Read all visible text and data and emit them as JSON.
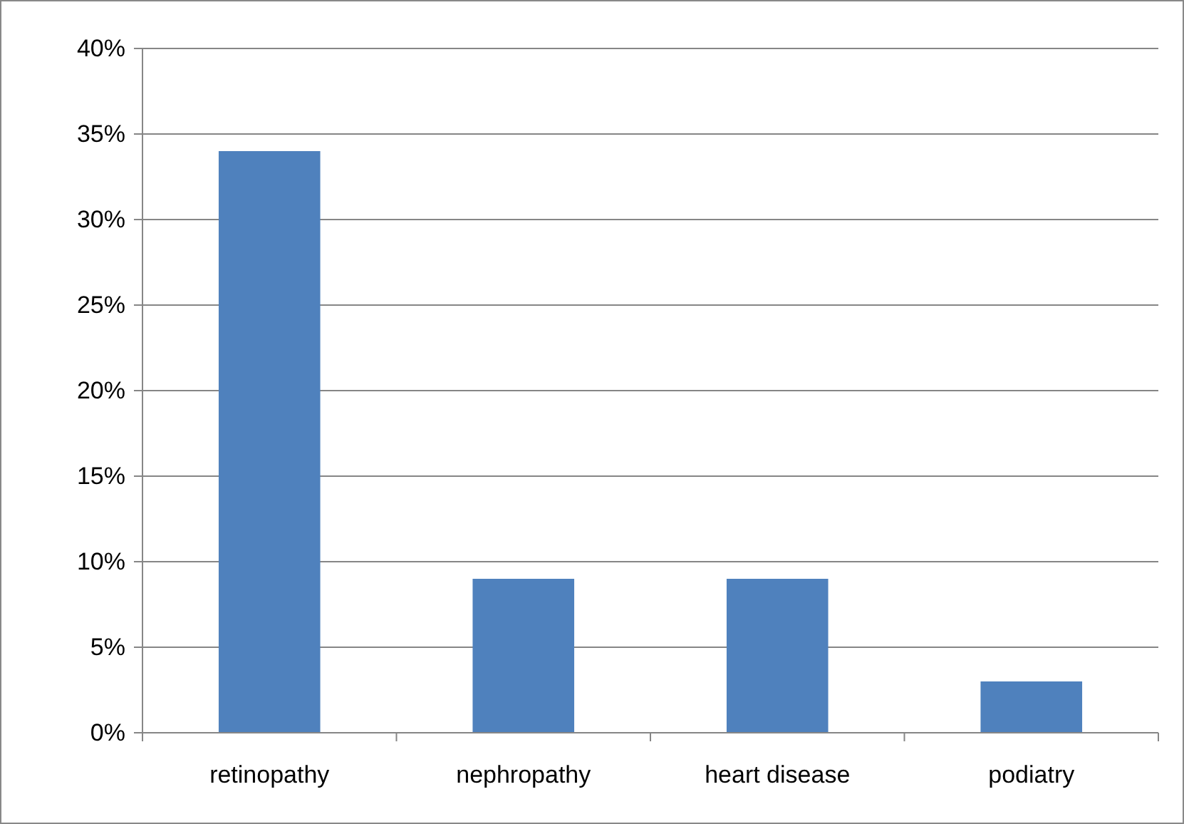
{
  "chart_data": {
    "type": "bar",
    "categories": [
      "retinopathy",
      "nephropathy",
      "heart disease",
      "podiatry"
    ],
    "values": [
      34,
      9,
      9,
      3
    ],
    "color": "#4f81bd",
    "ylim": [
      0,
      40
    ],
    "yticks": [
      {
        "value": 0,
        "label": "0%"
      },
      {
        "value": 5,
        "label": "5%"
      },
      {
        "value": 10,
        "label": "10%"
      },
      {
        "value": 15,
        "label": "15%"
      },
      {
        "value": 20,
        "label": "20%"
      },
      {
        "value": 25,
        "label": "25%"
      },
      {
        "value": 30,
        "label": "30%"
      },
      {
        "value": 35,
        "label": "35%"
      },
      {
        "value": 40,
        "label": "40%"
      }
    ],
    "grid": "y"
  }
}
